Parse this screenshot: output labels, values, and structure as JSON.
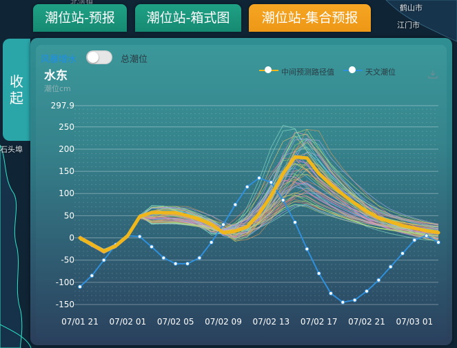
{
  "map": {
    "labels": [
      "鹤山市",
      "江门市",
      "北滘镇",
      "石头埠"
    ]
  },
  "tabs": [
    {
      "label": "潮位站-预报",
      "color": "#1fa185"
    },
    {
      "label": "潮位站-箱式图",
      "color": "#1fa185"
    },
    {
      "label": "潮位站-集合预报",
      "color": "#f5a623"
    }
  ],
  "collapse": {
    "line1": "收",
    "line2": "起"
  },
  "toggle": {
    "left_label": "风暴增水",
    "right_label": "总潮位"
  },
  "station": {
    "name": "水东",
    "unit": "潮位cm"
  },
  "legend": [
    {
      "label": "中间预测路径值",
      "color": "#f0b71c"
    },
    {
      "label": "天文潮位",
      "color": "#2f8fdb"
    }
  ],
  "icons": {
    "download": "download-icon"
  },
  "chart_data": {
    "type": "line",
    "y_ticks": [
      "297.9",
      "250",
      "200",
      "150",
      "100",
      "50",
      "0",
      "-50",
      "-100",
      "-150"
    ],
    "ylim": [
      -150,
      297.9
    ],
    "x_tick_labels": [
      "07/01 21",
      "07/02 01",
      "07/02 05",
      "07/02 09",
      "07/02 13",
      "07/02 17",
      "07/02 21",
      "07/03 01"
    ],
    "x_hours": [
      0,
      4,
      8,
      12,
      16,
      20,
      24,
      28
    ],
    "x_range_hours": [
      0,
      30
    ],
    "series": [
      {
        "name": "中间预测路径值",
        "color": "#f0b71c",
        "x": [
          0,
          1,
          2,
          3,
          4,
          5,
          6,
          7,
          8,
          9,
          10,
          11,
          12,
          13,
          14,
          15,
          16,
          17,
          18,
          19,
          20,
          21,
          22,
          23,
          24,
          25,
          26,
          27,
          28,
          29,
          30
        ],
        "values": [
          0,
          -15,
          -30,
          -18,
          5,
          48,
          57,
          57,
          57,
          50,
          42,
          30,
          12,
          15,
          25,
          55,
          95,
          145,
          182,
          180,
          145,
          120,
          98,
          78,
          60,
          45,
          36,
          28,
          22,
          16,
          12
        ]
      },
      {
        "name": "天文潮位",
        "color": "#2f8fdb",
        "x": [
          0,
          1,
          2,
          3,
          4,
          5,
          6,
          7,
          8,
          9,
          10,
          11,
          12,
          13,
          14,
          15,
          16,
          17,
          18,
          19,
          20,
          21,
          22,
          23,
          24,
          25,
          26,
          27,
          28,
          29,
          30
        ],
        "values": [
          -110,
          -85,
          -50,
          -15,
          5,
          3,
          -20,
          -45,
          -58,
          -58,
          -45,
          -10,
          30,
          75,
          115,
          135,
          125,
          85,
          35,
          -25,
          -80,
          -125,
          -145,
          -140,
          -120,
          -95,
          -65,
          -35,
          -5,
          5,
          -10
        ]
      }
    ],
    "ensemble": {
      "count": 60,
      "colors": [
        "#e07b6a",
        "#9fd86b",
        "#c08be0",
        "#6cc4e8",
        "#e8c86c",
        "#e88bb6",
        "#8be0c6",
        "#a8a8e8",
        "#d89a5a",
        "#b4e07b"
      ]
    }
  }
}
